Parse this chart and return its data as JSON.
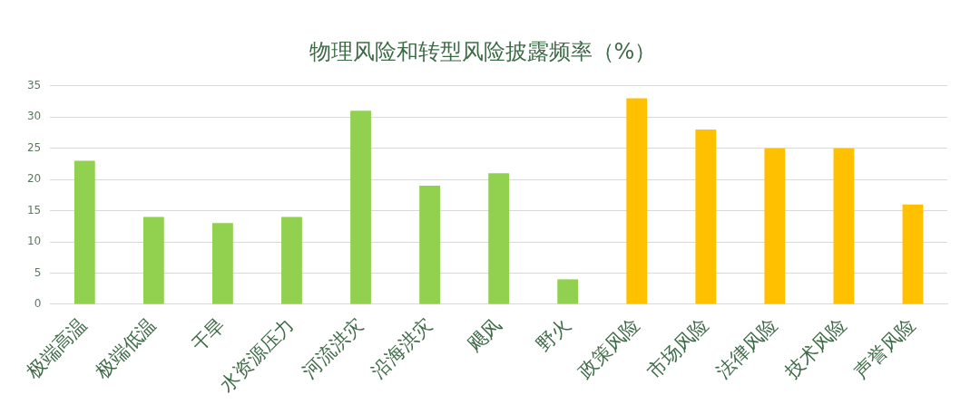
{
  "chart_data": {
    "type": "bar",
    "title": "物理风险和转型风险披露频率（%）",
    "categories": [
      "极端高温",
      "极端低温",
      "干旱",
      "水资源压力",
      "河流洪灾",
      "沿海洪灾",
      "飓风",
      "野火",
      "政策风险",
      "市场风险",
      "法律风险",
      "技术风险",
      "声誉风险"
    ],
    "values": [
      23,
      14,
      13,
      14,
      31,
      19,
      21,
      4,
      33,
      28,
      25,
      25,
      16
    ],
    "colors": [
      "#92d050",
      "#92d050",
      "#92d050",
      "#92d050",
      "#92d050",
      "#92d050",
      "#92d050",
      "#92d050",
      "#ffc000",
      "#ffc000",
      "#ffc000",
      "#ffc000",
      "#ffc000"
    ],
    "ylim": [
      0,
      35
    ],
    "yticks": [
      0,
      5,
      10,
      15,
      20,
      25,
      30,
      35
    ],
    "grid": "y",
    "legend": false
  }
}
